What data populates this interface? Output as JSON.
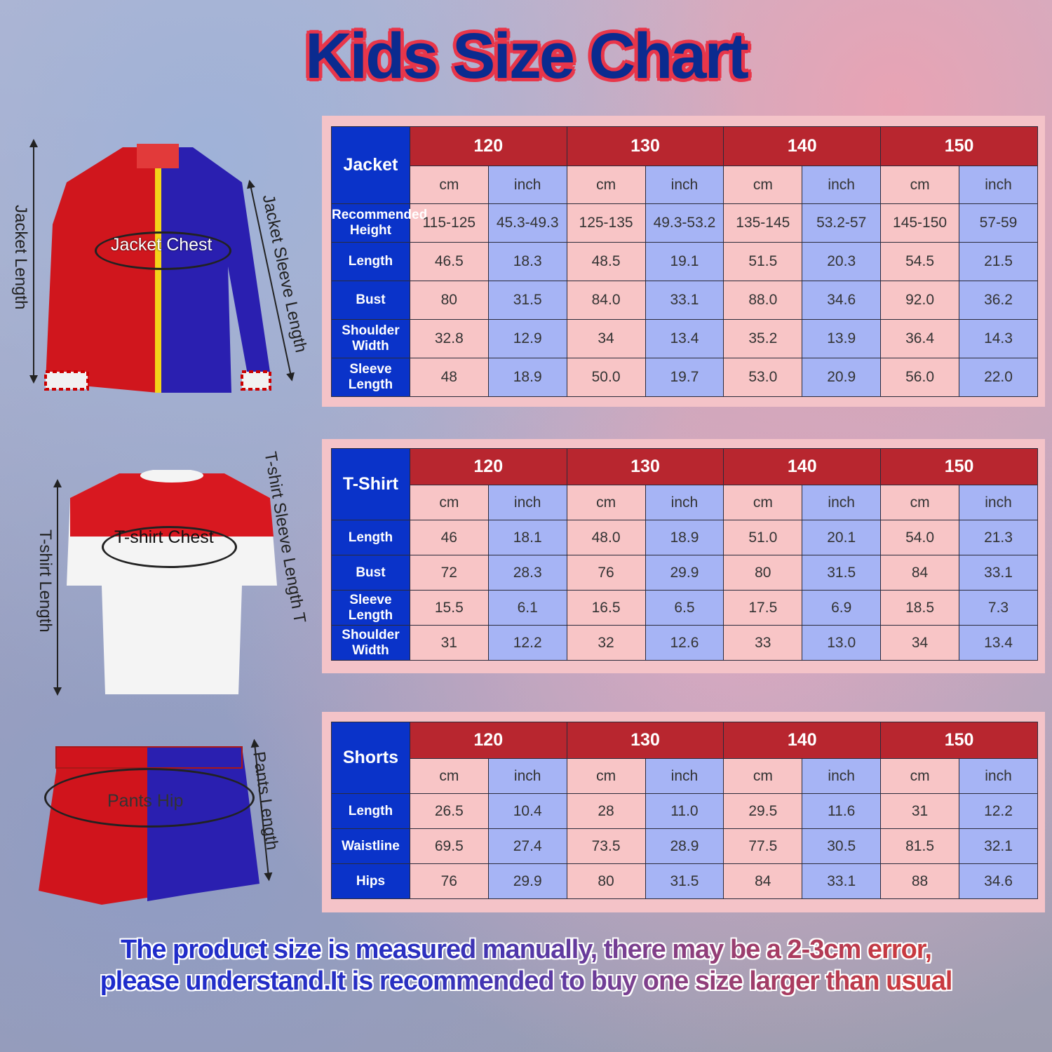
{
  "title": "Kids Size Chart",
  "colors": {
    "header_size": "#b8262f",
    "label": "#0a33c9",
    "cm_cell": "#f8c5c6",
    "inch_cell": "#a6b4f5",
    "panel": "#f4c3c8"
  },
  "illustrations": {
    "jacket": {
      "length": "Jacket Length",
      "chest": "Jacket Chest",
      "sleeve": "Jacket Sleeve Length"
    },
    "tshirt": {
      "length": "T-shirt Length",
      "chest": "T-shirt Chest",
      "sleeve": "T-shirt Sleeve Length T"
    },
    "shorts": {
      "hip": "Pants Hip",
      "length": "Pants Length"
    }
  },
  "tables": [
    {
      "name": "Jacket",
      "sizes": [
        "120",
        "130",
        "140",
        "150"
      ],
      "units": [
        "cm",
        "inch"
      ],
      "rows": [
        {
          "label": "Recommended Height",
          "values": [
            "115-125",
            "45.3-49.3",
            "125-135",
            "49.3-53.2",
            "135-145",
            "53.2-57",
            "145-150",
            "57-59"
          ]
        },
        {
          "label": "Length",
          "values": [
            "46.5",
            "18.3",
            "48.5",
            "19.1",
            "51.5",
            "20.3",
            "54.5",
            "21.5"
          ]
        },
        {
          "label": "Bust",
          "values": [
            "80",
            "31.5",
            "84.0",
            "33.1",
            "88.0",
            "34.6",
            "92.0",
            "36.2"
          ]
        },
        {
          "label": "Shoulder Width",
          "values": [
            "32.8",
            "12.9",
            "34",
            "13.4",
            "35.2",
            "13.9",
            "36.4",
            "14.3"
          ]
        },
        {
          "label": "Sleeve Length",
          "values": [
            "48",
            "18.9",
            "50.0",
            "19.7",
            "53.0",
            "20.9",
            "56.0",
            "22.0"
          ]
        }
      ]
    },
    {
      "name": "T-Shirt",
      "sizes": [
        "120",
        "130",
        "140",
        "150"
      ],
      "units": [
        "cm",
        "inch"
      ],
      "rows": [
        {
          "label": "Length",
          "values": [
            "46",
            "18.1",
            "48.0",
            "18.9",
            "51.0",
            "20.1",
            "54.0",
            "21.3"
          ]
        },
        {
          "label": "Bust",
          "values": [
            "72",
            "28.3",
            "76",
            "29.9",
            "80",
            "31.5",
            "84",
            "33.1"
          ]
        },
        {
          "label": "Sleeve Length",
          "values": [
            "15.5",
            "6.1",
            "16.5",
            "6.5",
            "17.5",
            "6.9",
            "18.5",
            "7.3"
          ]
        },
        {
          "label": "Shoulder Width",
          "values": [
            "31",
            "12.2",
            "32",
            "12.6",
            "33",
            "13.0",
            "34",
            "13.4"
          ]
        }
      ]
    },
    {
      "name": "Shorts",
      "sizes": [
        "120",
        "130",
        "140",
        "150"
      ],
      "units": [
        "cm",
        "inch"
      ],
      "rows": [
        {
          "label": "Length",
          "values": [
            "26.5",
            "10.4",
            "28",
            "11.0",
            "29.5",
            "11.6",
            "31",
            "12.2"
          ]
        },
        {
          "label": "Waistline",
          "values": [
            "69.5",
            "27.4",
            "73.5",
            "28.9",
            "77.5",
            "30.5",
            "81.5",
            "32.1"
          ]
        },
        {
          "label": "Hips",
          "values": [
            "76",
            "29.9",
            "80",
            "31.5",
            "84",
            "33.1",
            "88",
            "34.6"
          ]
        }
      ]
    }
  ],
  "note": {
    "line1": "The product size is measured manually, there may be a 2-3cm error,",
    "line2": "please understand.It is recommended to buy one size larger than usual"
  }
}
